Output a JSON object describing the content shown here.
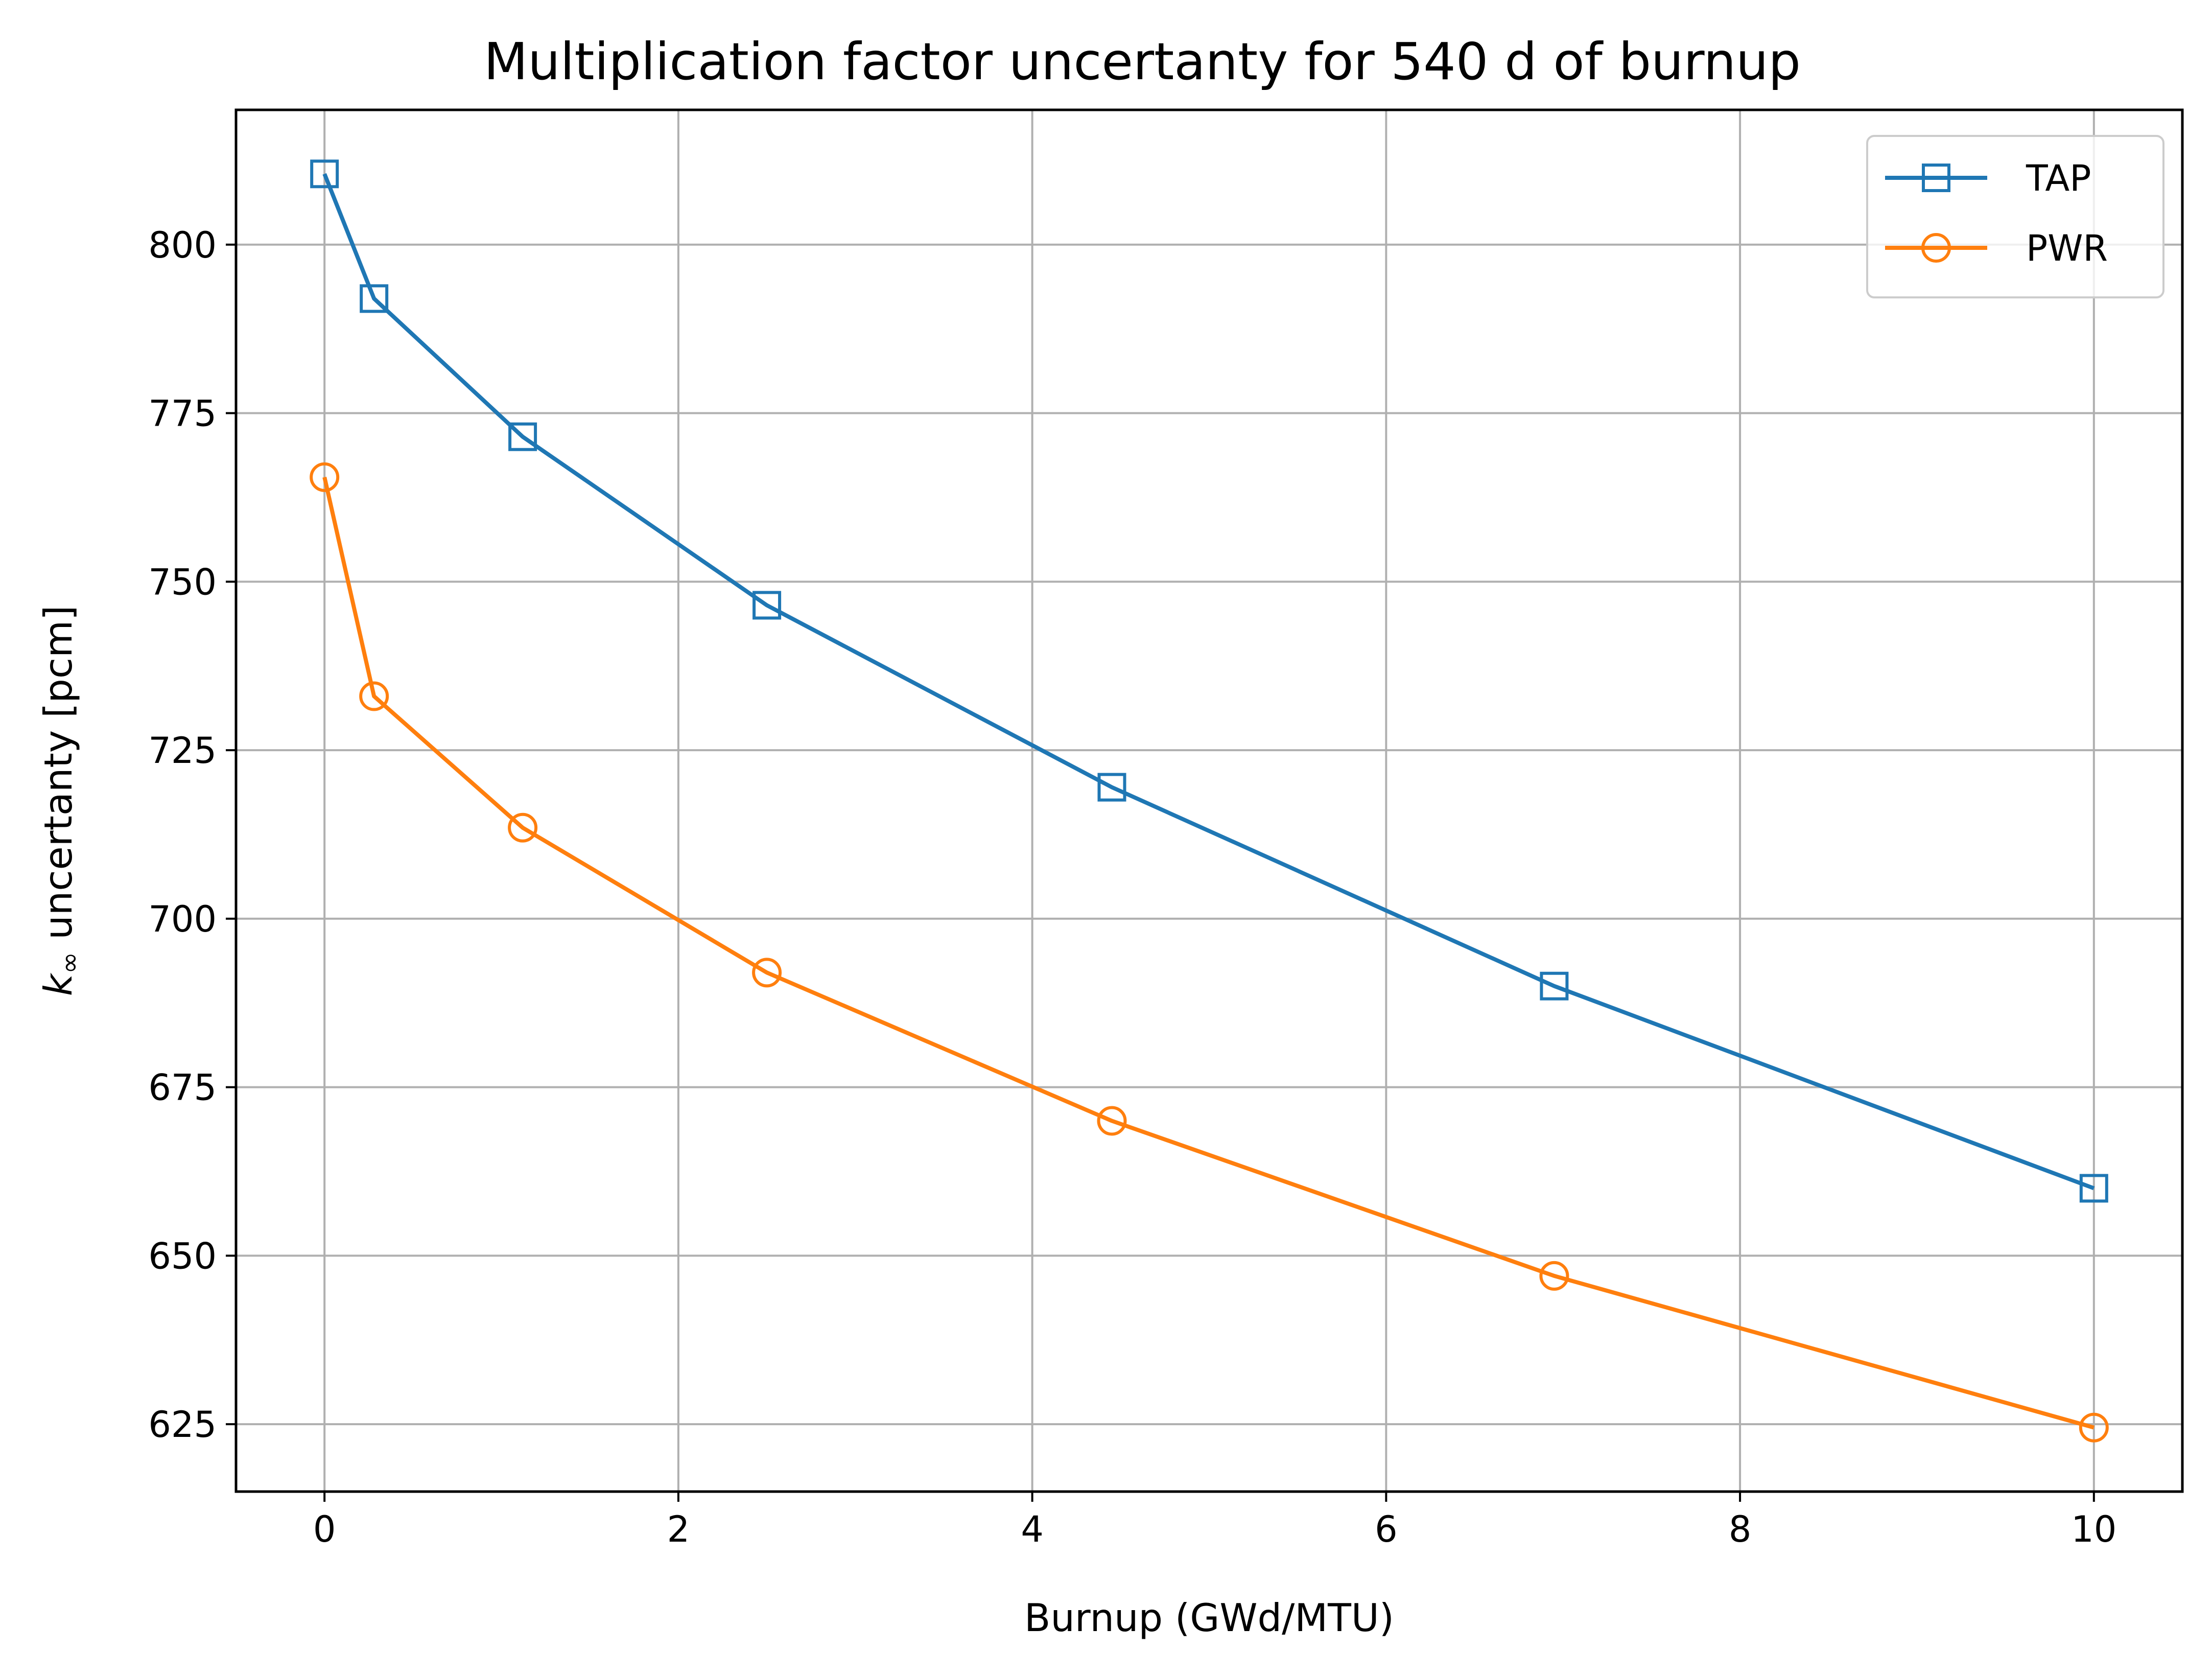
{
  "chart_data": {
    "type": "line",
    "title": "Multiplication factor uncertanty for 540 d of burnup",
    "xlabel": "Burnup (GWd/MTU)",
    "ylabel_symbol": "k",
    "ylabel_subscript": "∞",
    "ylabel_text": " uncertanty [pcm]",
    "xlim": [
      -0.5,
      10.5
    ],
    "ylim": [
      615,
      820
    ],
    "xticks": [
      0,
      2,
      4,
      6,
      8,
      10
    ],
    "yticks": [
      625,
      650,
      675,
      700,
      725,
      750,
      775,
      800
    ],
    "grid": true,
    "legend_position": "top-right",
    "series": [
      {
        "name": "TAP",
        "color": "#1f77b4",
        "marker": "square",
        "x": [
          0,
          0.28,
          1.12,
          2.5,
          4.45,
          6.95,
          10
        ],
        "values": [
          810.5,
          792,
          771.5,
          746.5,
          719.5,
          690,
          660
        ]
      },
      {
        "name": "PWR",
        "color": "#ff7f0e",
        "marker": "circle",
        "x": [
          0,
          0.28,
          1.12,
          2.5,
          4.45,
          6.95,
          10
        ],
        "values": [
          765.5,
          733,
          713.5,
          692,
          670,
          647,
          624.5
        ]
      }
    ]
  }
}
